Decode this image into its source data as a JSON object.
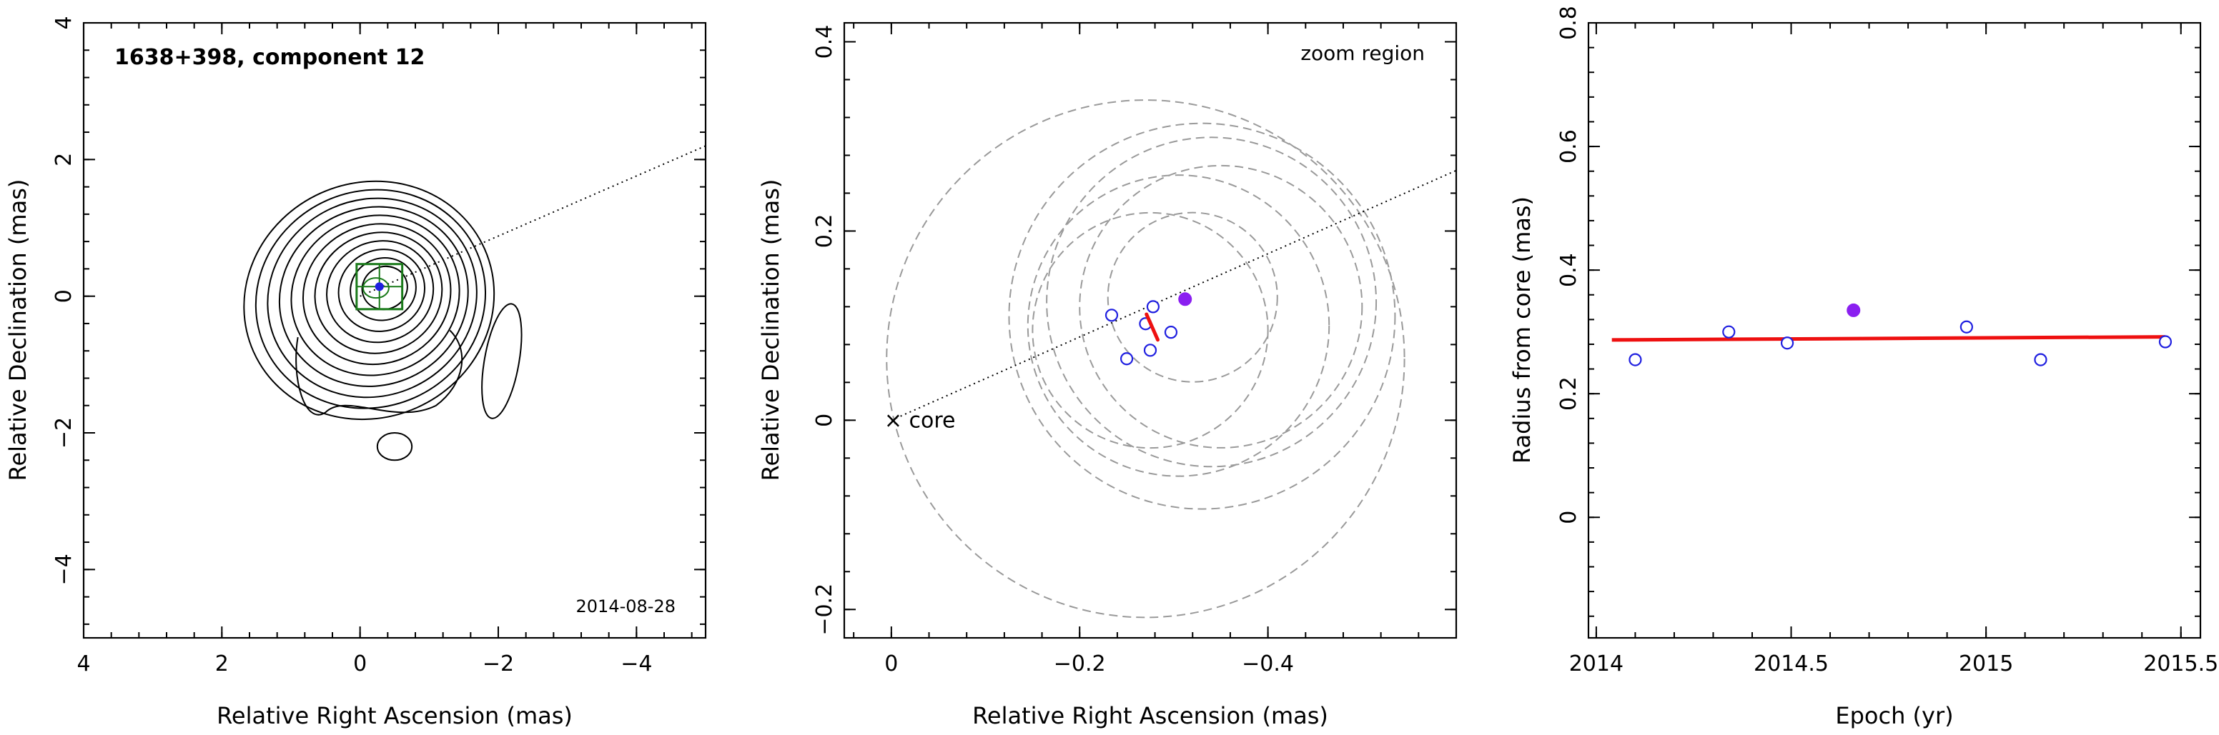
{
  "chart_data": [
    {
      "type": "scatter",
      "title": "1638+398, component 12",
      "annotation": "2014-08-28",
      "xlabel": "Relative Right Ascension (mas)",
      "ylabel": "Relative Declination (mas)",
      "xlim": [
        4,
        -5
      ],
      "ylim": [
        -5,
        4
      ],
      "xticks": [
        4,
        2,
        0,
        -2,
        -4
      ],
      "yticks": [
        -4,
        -2,
        0,
        2,
        4
      ],
      "xticklabels": [
        "4",
        "2",
        "0",
        "−2",
        "−4"
      ],
      "yticklabels": [
        "−4",
        "−2",
        "0",
        "2",
        "4"
      ],
      "contour_levels": 11,
      "component": {
        "x": -0.28,
        "y": 0.14,
        "box_half_size": 0.33
      },
      "jet_axis_slope": 0.44,
      "grid": false,
      "legend": "none"
    },
    {
      "type": "scatter",
      "title": "zoom region",
      "xlabel": "Relative Right Ascension (mas)",
      "ylabel": "Relative Declination (mas)",
      "xlim": [
        0.05,
        -0.6
      ],
      "ylim": [
        -0.23,
        0.42
      ],
      "xticks": [
        0,
        -0.2,
        -0.4
      ],
      "yticks": [
        -0.2,
        0,
        0.2,
        0.4
      ],
      "xticklabels": [
        "0",
        "−0.2",
        "−0.4"
      ],
      "yticklabels": [
        "−0.2",
        "0",
        "0.2",
        "0.4"
      ],
      "core_label": "core",
      "core": {
        "x": 0,
        "y": 0
      },
      "jet_axis_slope": 0.44,
      "positions": [
        {
          "x": -0.234,
          "y": 0.111,
          "epoch_index": 0
        },
        {
          "x": -0.278,
          "y": 0.12,
          "epoch_index": 1
        },
        {
          "x": -0.25,
          "y": 0.065,
          "epoch_index": 2
        },
        {
          "x": -0.312,
          "y": 0.128,
          "epoch_index": 3,
          "highlight": true
        },
        {
          "x": -0.297,
          "y": 0.093,
          "epoch_index": 4
        },
        {
          "x": -0.275,
          "y": 0.074,
          "epoch_index": 5
        },
        {
          "x": -0.27,
          "y": 0.102,
          "epoch_index": 6
        }
      ],
      "error_circles": [
        {
          "cx": -0.27,
          "cy": 0.065,
          "r": 0.275
        },
        {
          "cx": -0.33,
          "cy": 0.11,
          "r": 0.205
        },
        {
          "cx": -0.34,
          "cy": 0.125,
          "r": 0.175
        },
        {
          "cx": -0.305,
          "cy": 0.1,
          "r": 0.16
        },
        {
          "cx": -0.35,
          "cy": 0.12,
          "r": 0.15
        },
        {
          "cx": -0.275,
          "cy": 0.095,
          "r": 0.125
        },
        {
          "cx": -0.32,
          "cy": 0.13,
          "r": 0.09
        }
      ],
      "velocity_vector": {
        "x1": -0.271,
        "y1": 0.112,
        "x2": -0.283,
        "y2": 0.085
      },
      "grid": false,
      "legend": "none"
    },
    {
      "type": "scatter",
      "xlabel": "Epoch (yr)",
      "ylabel": "Radius from core (mas)",
      "xlim": [
        2013.98,
        2015.55
      ],
      "ylim": [
        -0.195,
        0.8
      ],
      "xticks": [
        2014,
        2014.5,
        2015,
        2015.5
      ],
      "yticks": [
        0,
        0.2,
        0.4,
        0.6,
        0.8
      ],
      "xticklabels": [
        "2014",
        "2014.5",
        "2015",
        "2015.5"
      ],
      "yticklabels": [
        "0",
        "0.2",
        "0.4",
        "0.6",
        "0.8"
      ],
      "x": [
        2014.1,
        2014.34,
        2014.49,
        2014.66,
        2014.95,
        2015.14,
        2015.46
      ],
      "y": [
        0.255,
        0.3,
        0.282,
        0.335,
        0.308,
        0.255,
        0.284
      ],
      "highlight_index": 3,
      "fit": {
        "x": [
          2014.04,
          2015.46
        ],
        "y": [
          0.287,
          0.292
        ],
        "color": "#ee1010"
      },
      "grid": false,
      "legend": "none"
    }
  ],
  "colors": {
    "component_box": "#1a7a1a",
    "component_marker": "#1f1fe0",
    "highlight_point": "#8a1ff0",
    "hollow_point": "#1f1fe0",
    "fit_line": "#ee1010",
    "error_circle": "#9a9a9a"
  }
}
